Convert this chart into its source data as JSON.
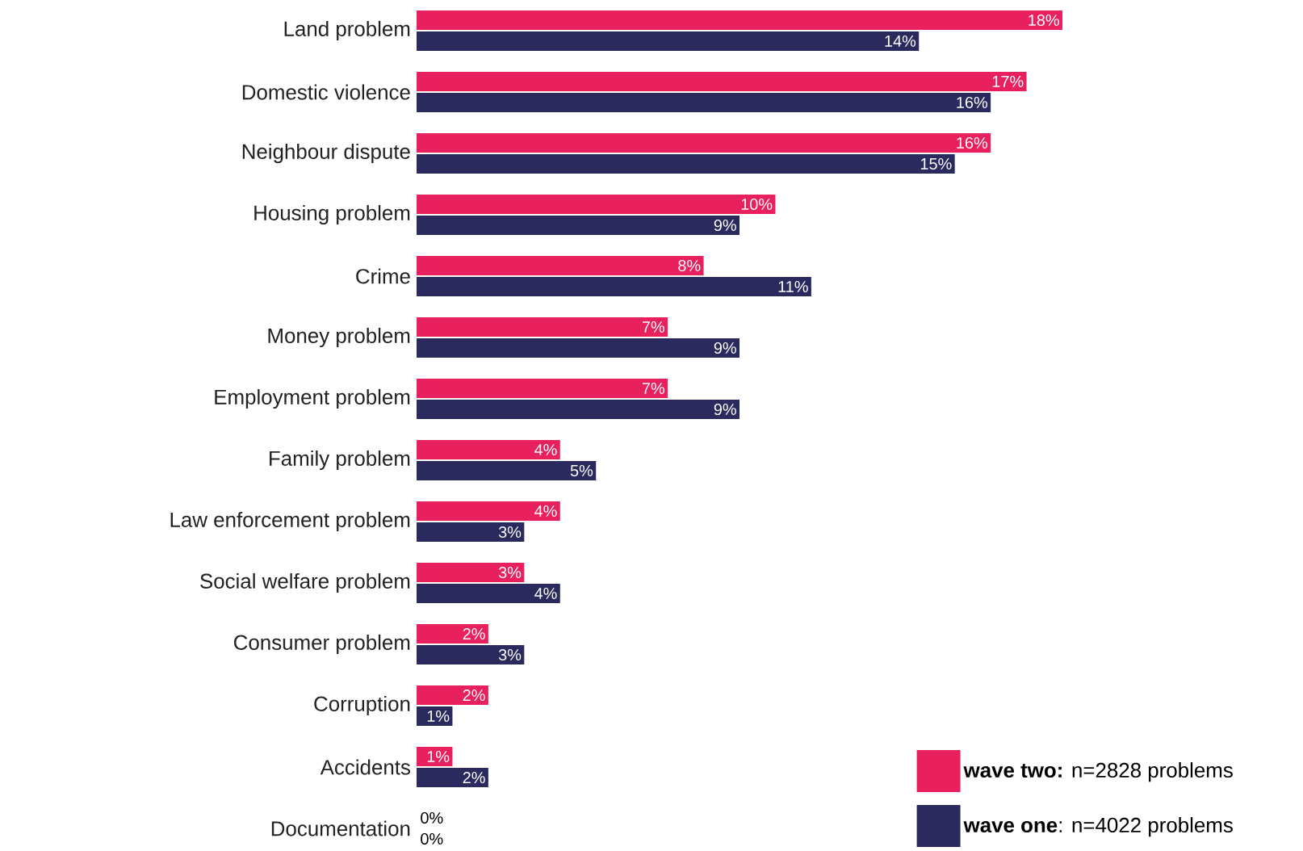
{
  "chart_data": {
    "type": "bar",
    "orientation": "horizontal",
    "categories": [
      "Land problem",
      "Domestic violence",
      "Neighbour dispute",
      "Housing problem",
      "Crime",
      "Money problem",
      "Employment problem",
      "Family problem",
      "Law enforcement problem",
      "Social welfare problem",
      "Consumer problem",
      "Corruption",
      "Accidents",
      "Documentation"
    ],
    "series": [
      {
        "name": "**wave two:** n=2828 problems",
        "color": "#e8215e",
        "values": [
          18,
          17,
          16,
          10,
          8,
          7,
          7,
          4,
          4,
          3,
          2,
          2,
          1,
          0
        ],
        "value_labels": [
          "18%",
          "17%",
          "16%",
          "10%",
          "8%",
          "7%",
          "7%",
          "4%",
          "4%",
          "3%",
          "2%",
          "2%",
          "1%",
          "0%"
        ]
      },
      {
        "name": "**wave one**: n=4022 problems",
        "color": "#2b2a5e",
        "values": [
          14,
          16,
          15,
          9,
          11,
          9,
          9,
          5,
          3,
          4,
          3,
          1,
          2,
          0
        ],
        "value_labels": [
          "14%",
          "16%",
          "15%",
          "9%",
          "11%",
          "9%",
          "9%",
          "5%",
          "3%",
          "4%",
          "3%",
          "1%",
          "2%",
          "0%"
        ]
      }
    ],
    "legend": "bottom right"
  }
}
